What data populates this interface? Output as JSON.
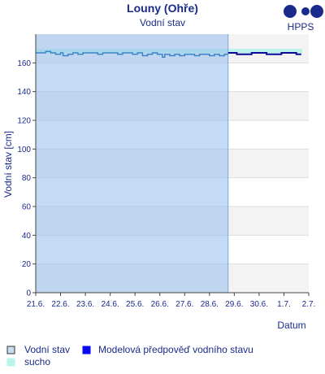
{
  "chart_data": {
    "type": "line",
    "title": "Louny (Ohře)",
    "subtitle": "Vodní stav",
    "ylabel": "Vodní stav [cm]",
    "xlabel": "Datum",
    "ylim": [
      0,
      180
    ],
    "yticks": [
      0,
      20,
      40,
      60,
      80,
      100,
      120,
      140,
      160
    ],
    "xlim": [
      0,
      11
    ],
    "xticks": [
      "21.6.",
      "22.6.",
      "23.6.",
      "24.6.",
      "25.6.",
      "26.6.",
      "27.6.",
      "28.6.",
      "29.6.",
      "30.6.",
      "1.7.",
      "2.7."
    ],
    "history_until_day": 7.75,
    "grid": true,
    "drought_level": 168,
    "series": [
      {
        "name": "Vodní stav",
        "color": "#3a86c8",
        "x": [
          0,
          0.2,
          0.4,
          0.6,
          0.8,
          1.0,
          1.1,
          1.3,
          1.5,
          1.7,
          1.9,
          2.1,
          2.3,
          2.5,
          2.7,
          2.9,
          3.1,
          3.3,
          3.5,
          3.7,
          3.9,
          4.1,
          4.3,
          4.5,
          4.7,
          4.9,
          5.1,
          5.2,
          5.4,
          5.6,
          5.8,
          6.0,
          6.2,
          6.4,
          6.6,
          6.8,
          7.0,
          7.2,
          7.4,
          7.6,
          7.75
        ],
        "values": [
          167,
          167,
          168,
          167,
          166,
          167,
          165,
          166,
          167,
          166,
          167,
          167,
          167,
          166,
          167,
          167,
          167,
          166,
          167,
          167,
          166,
          167,
          165,
          166,
          167,
          166,
          164,
          166,
          165,
          166,
          165,
          166,
          166,
          165,
          166,
          166,
          165,
          166,
          165,
          166,
          166
        ]
      },
      {
        "name": "Modelová předpověď vodního stavu",
        "color": "#0a0a9a",
        "x": [
          7.75,
          8.1,
          8.4,
          8.7,
          9.0,
          9.3,
          9.6,
          9.9,
          10.2,
          10.5,
          10.7
        ],
        "values": [
          167,
          166,
          166,
          167,
          167,
          166,
          166,
          167,
          167,
          166,
          166
        ]
      }
    ]
  },
  "logo": {
    "text": "HPPS",
    "color": "#1a2a8c"
  },
  "legend": {
    "items": [
      {
        "label": "Vodní stav",
        "swatch": "#c8dcf0",
        "border": "#333333"
      },
      {
        "label": "Modelová předpověď vodního stavu",
        "swatch": "#0a0aee",
        "border": "#0a0aee"
      },
      {
        "label": "sucho",
        "swatch": "#b8f4ec",
        "border": "#b8f4ec"
      }
    ]
  }
}
